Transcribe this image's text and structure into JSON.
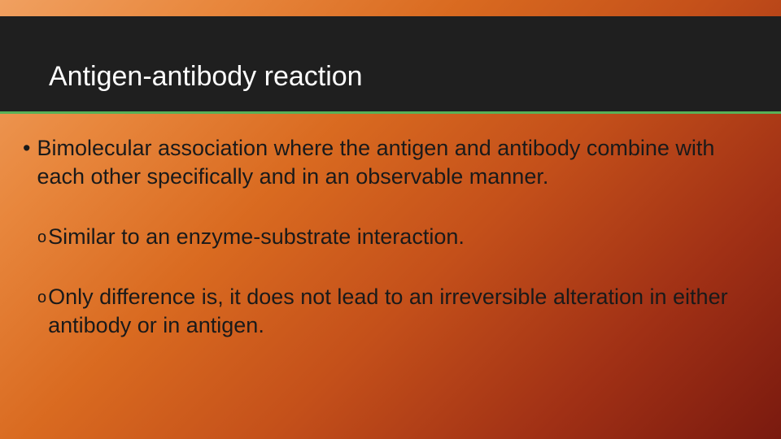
{
  "slide": {
    "title": "Antigen-antibody reaction",
    "bullets": {
      "b1": "Bimolecular association where the antigen and antibody combine with each other specifically and in an observable manner.",
      "b2": "Similar to an enzyme-substrate interaction.",
      "b3": "Only difference is, it does not lead to an irreversible alteration in either antibody or in antigen."
    },
    "markers": {
      "dot": "•",
      "circ": "o"
    },
    "style": {
      "title_bar_bg": "#1f1f1f",
      "title_bar_underline": "#58b158",
      "title_color": "#ffffff",
      "title_fontsize_pt": 26,
      "body_fontsize_pt": 20,
      "body_color": "#1a1a1a",
      "background_gradient": [
        "#f0a060",
        "#e8873d",
        "#d96a20",
        "#c4501a",
        "#a03015",
        "#7a1a0f"
      ],
      "font_family": "Trebuchet MS"
    }
  }
}
